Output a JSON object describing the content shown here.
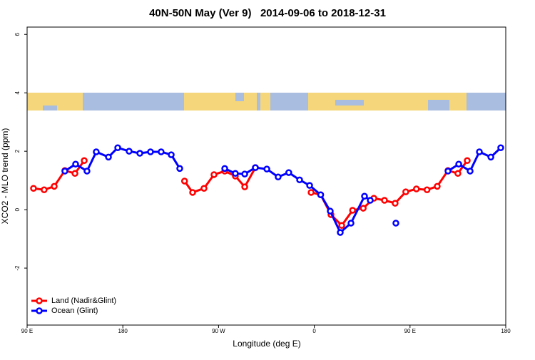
{
  "chart_data": {
    "type": "line",
    "title": "40N-50N May (Ver 9)   2014-09-06 to 2018-12-31",
    "x_label": "Longitude (deg E)",
    "y_label": "XCO2 - MLO trend (ppm)",
    "xlim": [
      90,
      540
    ],
    "ylim": [
      -3.95,
      6.25
    ],
    "xticks": [
      {
        "value": 90,
        "label": "90 E"
      },
      180,
      {
        "value": 270,
        "label": "90 W"
      },
      {
        "value": 360,
        "label": "0"
      },
      {
        "value": 450,
        "label": "90 E"
      },
      {
        "value": 540,
        "label": "180"
      }
    ],
    "yticks": [
      -2,
      0,
      2,
      4,
      6
    ],
    "legend": "bottom-left",
    "series": [
      {
        "name": "Land (Nadir&Glint)",
        "color": "#ff0000",
        "x": [
          96,
          106,
          115.5,
          125.5,
          135,
          143.7,
          null,
          238,
          245.6,
          256.3,
          265.7,
          275.8,
          285.8,
          294.6,
          304.6,
          null,
          357,
          366,
          375.7,
          385.8,
          396,
          406,
          416,
          426,
          436,
          446,
          456,
          466,
          475.6,
          485.7,
          495,
          503.8
        ],
        "values": [
          0.73,
          0.68,
          0.8,
          1.34,
          1.24,
          1.68,
          null,
          0.98,
          0.59,
          0.73,
          1.2,
          1.32,
          1.15,
          0.78,
          1.44,
          null,
          0.59,
          0.51,
          -0.17,
          -0.54,
          -0.02,
          0.05,
          0.39,
          0.32,
          0.22,
          0.61,
          0.71,
          0.68,
          0.8,
          1.34,
          1.24,
          1.68
        ]
      },
      {
        "name": "Ocean (Glint)",
        "color": "#0000ff",
        "x": [
          125.5,
          135.6,
          146.3,
          155,
          166.5,
          175.2,
          185.9,
          196,
          206,
          216,
          225.5,
          233.5,
          null,
          275.8,
          285.8,
          294.6,
          304.6,
          315.4,
          326,
          336,
          346.2,
          355.6,
          366,
          375,
          384.4,
          394.5,
          407.2,
          412.6,
          null,
          436.7,
          null,
          485.7,
          495.8,
          506.5,
          515.2,
          526,
          535.3
        ],
        "values": [
          1.32,
          1.56,
          1.32,
          1.98,
          1.8,
          2.12,
          2.0,
          1.93,
          1.98,
          1.98,
          1.88,
          1.41,
          null,
          1.41,
          1.24,
          1.22,
          1.44,
          1.39,
          1.12,
          1.27,
          1.02,
          0.83,
          0.51,
          -0.05,
          -0.78,
          -0.46,
          0.46,
          0.32,
          null,
          -0.46,
          null,
          1.32,
          1.56,
          1.32,
          1.98,
          1.8,
          2.12
        ]
      }
    ]
  }
}
